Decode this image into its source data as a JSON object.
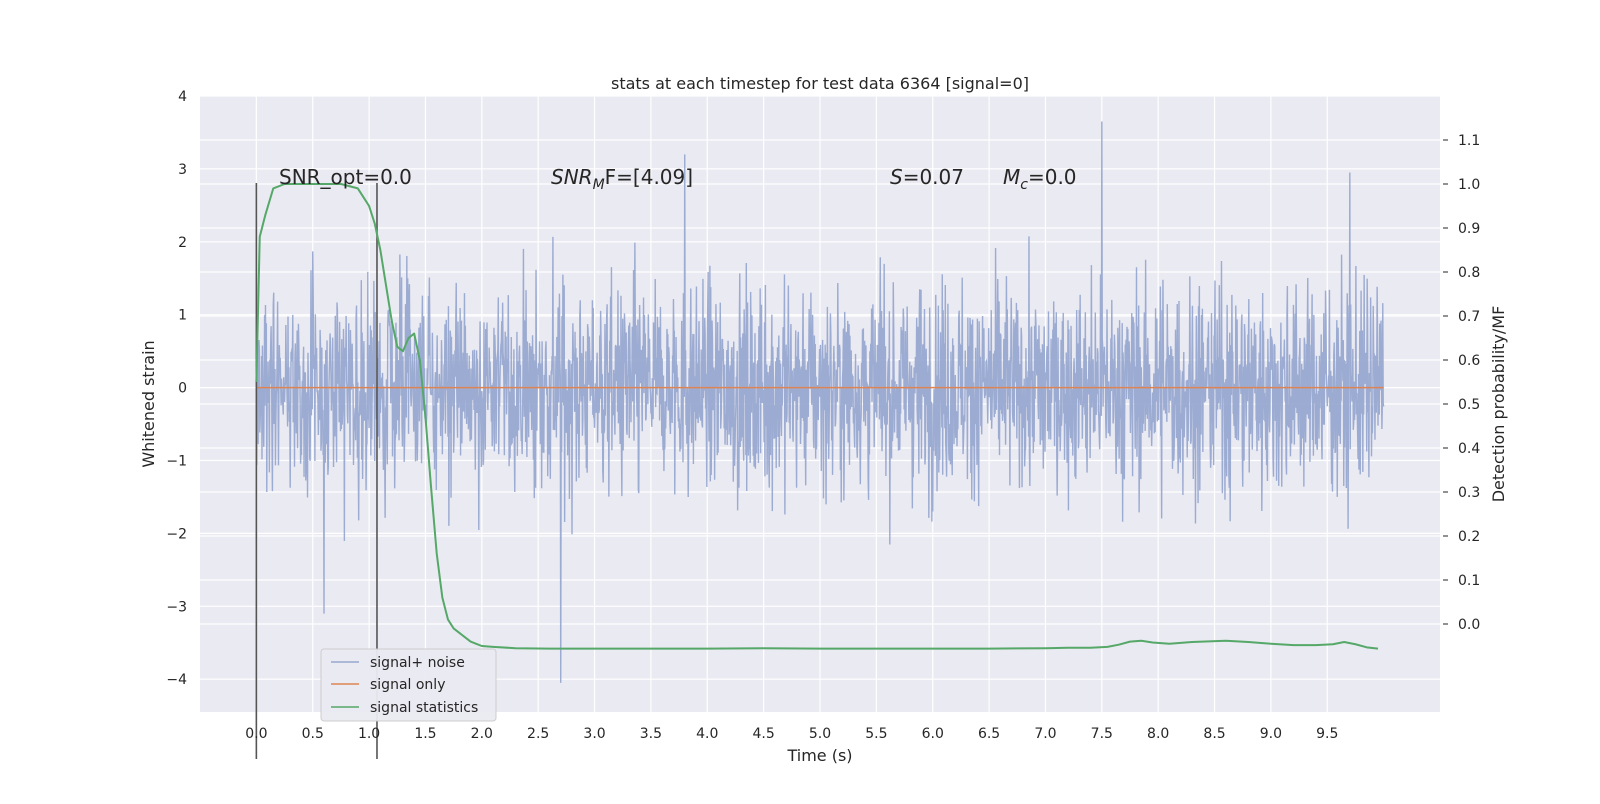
{
  "chart_data": {
    "type": "line",
    "title": "stats at each timestep for test data 6364 [signal=0]",
    "xlabel": "Time (s)",
    "ylabel_left": "Whitened strain",
    "ylabel_right": "Detection probability/MF",
    "xlim": [
      -0.5,
      10.5
    ],
    "ylim_left": [
      -4.45,
      4.0
    ],
    "ylim_right": [
      -0.2,
      1.2
    ],
    "x_ticks": [
      "0.0",
      "0.5",
      "1.0",
      "1.5",
      "2.0",
      "2.5",
      "3.0",
      "3.5",
      "4.0",
      "4.5",
      "5.0",
      "5.5",
      "6.0",
      "6.5",
      "7.0",
      "7.5",
      "8.0",
      "8.5",
      "9.0",
      "9.5"
    ],
    "y_ticks_left": [
      "−4",
      "−3",
      "−2",
      "−1",
      "0",
      "1",
      "2",
      "3",
      "4"
    ],
    "y_ticks_right": [
      "0.0",
      "0.1",
      "0.2",
      "0.3",
      "0.4",
      "0.5",
      "0.6",
      "0.7",
      "0.8",
      "0.9",
      "1.0",
      "1.1"
    ],
    "grid": true,
    "legend_position": "lower-left",
    "annotations": {
      "snr_opt": "SNR_opt=0.0",
      "snr_mf_var": "SNR",
      "snr_mf_sub": "M",
      "snr_mf_rest": "F=[4.09]",
      "s_var": "S",
      "s_rest": "=0.07",
      "mc_var": "M",
      "mc_sub": "c",
      "mc_rest": "=0.0"
    },
    "vlines_x": [
      0.0,
      1.07
    ],
    "series": [
      {
        "name": "signal+ noise",
        "color": "#98a8d0",
        "x_range": [
          0.0,
          10.0
        ],
        "typical_envelope": [
          -1.7,
          2.6
        ],
        "extremes": [
          {
            "x": 0.6,
            "y": -3.1
          },
          {
            "x": 2.7,
            "y": -4.05
          },
          {
            "x": 3.8,
            "y": 3.2
          },
          {
            "x": 7.5,
            "y": 3.65
          },
          {
            "x": 9.7,
            "y": 2.95
          }
        ]
      },
      {
        "name": "signal only",
        "color": "#dd8452",
        "x": [
          0.0,
          10.0
        ],
        "y": [
          0.0,
          0.0
        ]
      },
      {
        "name": "signal statistics",
        "color": "#55a868",
        "x": [
          0.0,
          0.03,
          0.08,
          0.15,
          0.25,
          0.4,
          0.6,
          0.75,
          0.9,
          0.95,
          1.0,
          1.05,
          1.1,
          1.15,
          1.2,
          1.25,
          1.3,
          1.35,
          1.4,
          1.45,
          1.5,
          1.55,
          1.6,
          1.65,
          1.7,
          1.75,
          1.8,
          1.85,
          1.9,
          1.95,
          2.0,
          2.1,
          2.3,
          2.6,
          3.0,
          3.5,
          4.0,
          4.5,
          5.0,
          5.5,
          6.0,
          6.5,
          7.0,
          7.2,
          7.4,
          7.55,
          7.65,
          7.75,
          7.85,
          7.95,
          8.1,
          8.3,
          8.6,
          8.8,
          9.0,
          9.2,
          9.4,
          9.55,
          9.65,
          9.75,
          9.85,
          9.95
        ],
        "y": [
          0.55,
          0.88,
          0.93,
          0.99,
          1.0,
          1.0,
          1.0,
          1.0,
          0.99,
          0.97,
          0.95,
          0.91,
          0.85,
          0.77,
          0.69,
          0.63,
          0.62,
          0.65,
          0.66,
          0.6,
          0.47,
          0.31,
          0.16,
          0.06,
          0.01,
          -0.01,
          -0.02,
          -0.03,
          -0.04,
          -0.045,
          -0.05,
          -0.052,
          -0.055,
          -0.056,
          -0.056,
          -0.056,
          -0.056,
          -0.055,
          -0.056,
          -0.056,
          -0.056,
          -0.056,
          -0.055,
          -0.054,
          -0.054,
          -0.052,
          -0.047,
          -0.04,
          -0.038,
          -0.042,
          -0.045,
          -0.041,
          -0.038,
          -0.041,
          -0.045,
          -0.048,
          -0.048,
          -0.046,
          -0.041,
          -0.046,
          -0.053,
          -0.056
        ]
      }
    ]
  }
}
